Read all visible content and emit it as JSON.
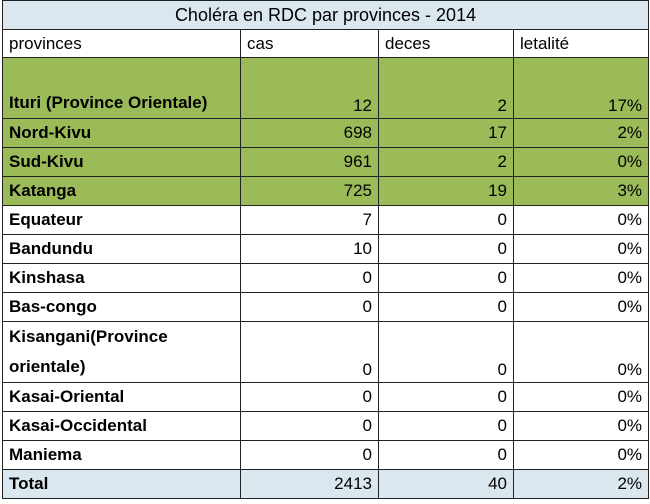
{
  "title": "Choléra  en RDC par provinces - 2014",
  "headers": [
    "provinces",
    "cas",
    "deces",
    "letalité"
  ],
  "rows": [
    {
      "name": "Ituri (Province Orientale)",
      "cas": "12",
      "deces": "2",
      "letalite": "17%",
      "highlight": true,
      "tall": true
    },
    {
      "name": "Nord-Kivu",
      "cas": "698",
      "deces": "17",
      "letalite": "2%",
      "highlight": true
    },
    {
      "name": "Sud-Kivu",
      "cas": "961",
      "deces": "2",
      "letalite": "0%",
      "highlight": true
    },
    {
      "name": "Katanga",
      "cas": "725",
      "deces": "19",
      "letalite": "3%",
      "highlight": true
    },
    {
      "name": "Equateur",
      "cas": "7",
      "deces": "0",
      "letalite": "0%"
    },
    {
      "name": "Bandundu",
      "cas": "10",
      "deces": "0",
      "letalite": "0%"
    },
    {
      "name": "Kinshasa",
      "cas": "0",
      "deces": "0",
      "letalite": "0%"
    },
    {
      "name": "Bas-congo",
      "cas": "0",
      "deces": "0",
      "letalite": "0%"
    },
    {
      "name": "Kisangani(Province orientale)",
      "cas": "0",
      "deces": "0",
      "letalite": "0%",
      "tall": true
    },
    {
      "name": "Kasai-Oriental",
      "cas": "0",
      "deces": "0",
      "letalite": "0%"
    },
    {
      "name": "Kasai-Occidental",
      "cas": "0",
      "deces": "0",
      "letalite": "0%"
    },
    {
      "name": "Maniema",
      "cas": "0",
      "deces": "0",
      "letalite": "0%"
    }
  ],
  "total": {
    "name": "Total",
    "cas": "2413",
    "deces": "40",
    "letalite": "2%"
  },
  "colors": {
    "highlight": "#9bbb59",
    "title_bg": "#dae7ef",
    "total_bg": "#dae7ef"
  }
}
